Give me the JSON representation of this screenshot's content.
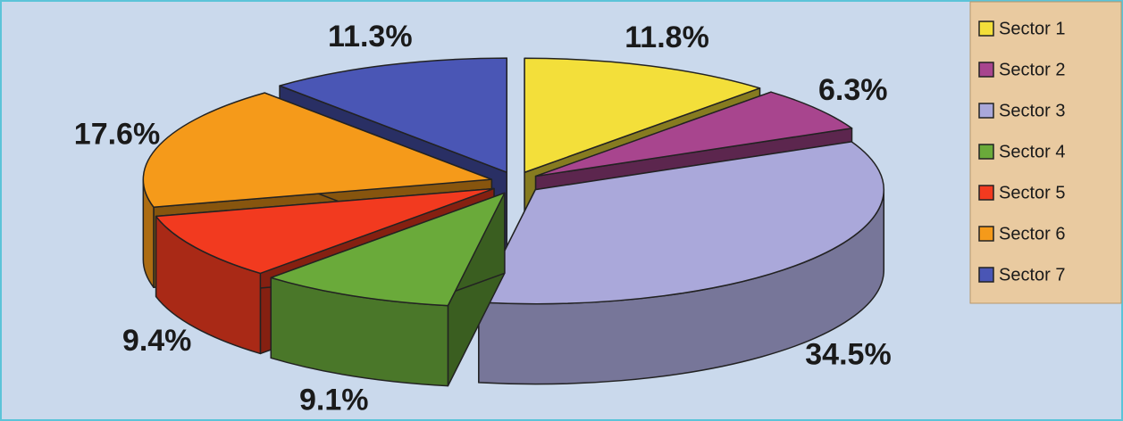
{
  "chart_data": {
    "type": "pie3d",
    "categories": [
      "Sector 1",
      "Sector 2",
      "Sector 3",
      "Sector 4",
      "Sector 5",
      "Sector 6",
      "Sector 7"
    ],
    "values": [
      11.8,
      6.3,
      34.5,
      9.1,
      9.4,
      17.6,
      11.3
    ],
    "value_labels": [
      "11.8%",
      "6.3%",
      "34.5%",
      "9.1%",
      "9.4%",
      "17.6%",
      "11.3%"
    ],
    "colors": [
      "#f3df3a",
      "#a8458e",
      "#aaa8da",
      "#6aaa3a",
      "#f23a1f",
      "#f59a1a",
      "#4a56b5"
    ],
    "legend": "right"
  }
}
